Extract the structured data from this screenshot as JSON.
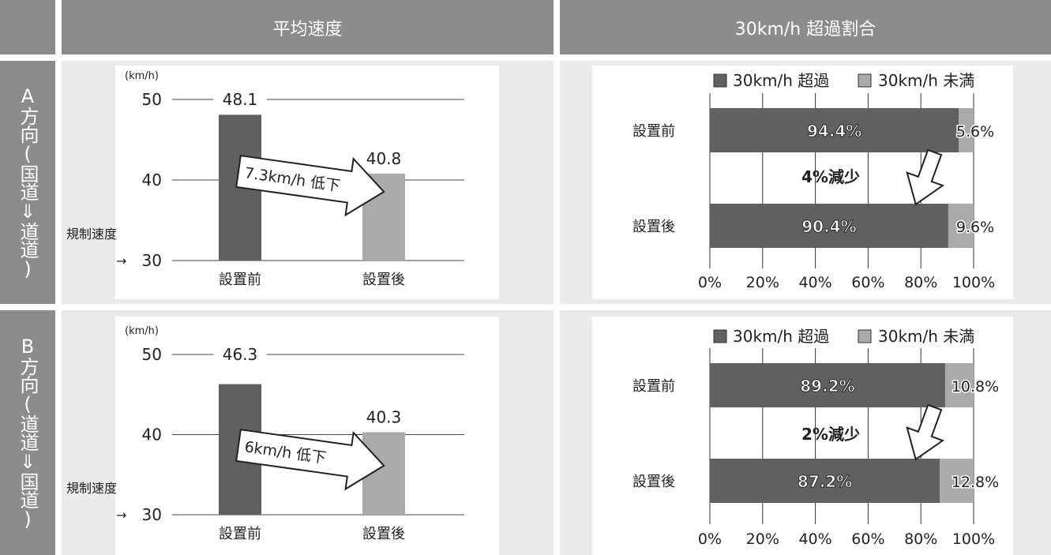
{
  "header": {
    "left_title": "平均速度",
    "right_title": "30km/h 超過割合"
  },
  "rows": [
    {
      "side_label": "A方向(国道⇓道道)"
    },
    {
      "side_label": "B方向(道道⇓国道)"
    }
  ],
  "colors": {
    "header_bg": "#8c8c8c",
    "panel_bg": "#ebebeb",
    "dark_bar": "#606060",
    "light_bar": "#aaaaaa"
  },
  "chart_data": [
    {
      "type": "bar",
      "categories": [
        "設置前",
        "設置後"
      ],
      "values": [
        48.1,
        40.8
      ],
      "value_labels": [
        "48.1",
        "40.8"
      ],
      "unit_label": "(km/h)",
      "yticks": [
        "30",
        "40",
        "50"
      ],
      "ylim": [
        30,
        50
      ],
      "limit_label": "規制速度",
      "limit_arrow": "→",
      "annotation": "7.3km/h 低下"
    },
    {
      "type": "bar",
      "stacked": true,
      "orientation": "horizontal",
      "categories": [
        "設置前",
        "設置後"
      ],
      "series": [
        {
          "name": "30km/h 超過",
          "values": [
            94.4,
            90.4
          ],
          "labels": [
            "94.4%",
            "90.4%"
          ]
        },
        {
          "name": "30km/h 未満",
          "values": [
            5.6,
            9.6
          ],
          "labels": [
            "5.6%",
            "9.6%"
          ]
        }
      ],
      "xticks": [
        "0%",
        "20%",
        "40%",
        "60%",
        "80%",
        "100%"
      ],
      "xlim": [
        0,
        100
      ],
      "annotation": "4%減少"
    },
    {
      "type": "bar",
      "categories": [
        "設置前",
        "設置後"
      ],
      "values": [
        46.3,
        40.3
      ],
      "value_labels": [
        "46.3",
        "40.3"
      ],
      "unit_label": "(km/h)",
      "yticks": [
        "30",
        "40",
        "50"
      ],
      "ylim": [
        30,
        50
      ],
      "limit_label": "規制速度",
      "limit_arrow": "→",
      "annotation": "6km/h 低下"
    },
    {
      "type": "bar",
      "stacked": true,
      "orientation": "horizontal",
      "categories": [
        "設置前",
        "設置後"
      ],
      "series": [
        {
          "name": "30km/h 超過",
          "values": [
            89.2,
            87.2
          ],
          "labels": [
            "89.2%",
            "87.2%"
          ]
        },
        {
          "name": "30km/h 未満",
          "values": [
            10.8,
            12.8
          ],
          "labels": [
            "10.8%",
            "12.8%"
          ]
        }
      ],
      "xticks": [
        "0%",
        "20%",
        "40%",
        "60%",
        "80%",
        "100%"
      ],
      "xlim": [
        0,
        100
      ],
      "annotation": "2%減少"
    }
  ]
}
